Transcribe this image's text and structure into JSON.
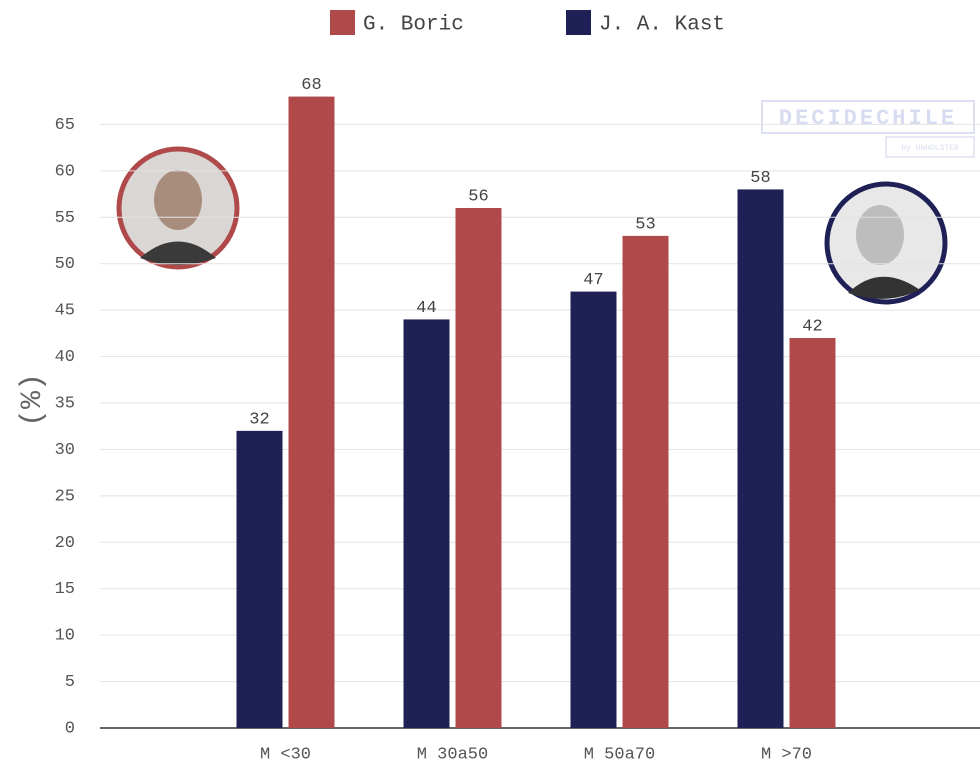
{
  "chart_data": {
    "type": "bar",
    "categories": [
      "M <30",
      "M 30a50",
      "M 50a70",
      "M >70"
    ],
    "series": [
      {
        "name": "G. Boric",
        "color": "#b0494a",
        "values": [
          68,
          56,
          53,
          42
        ]
      },
      {
        "name": "J. A. Kast",
        "color": "#1f2056",
        "values": [
          32,
          44,
          47,
          58
        ]
      }
    ],
    "y_label": "(%)",
    "ylim": [
      0,
      70
    ],
    "yticks": [
      0,
      5,
      10,
      15,
      20,
      25,
      30,
      35,
      40,
      45,
      50,
      55,
      60,
      65
    ],
    "grid": true,
    "watermark": "DECIDECHILE",
    "watermark_sub": "by UNHOLSTER"
  }
}
